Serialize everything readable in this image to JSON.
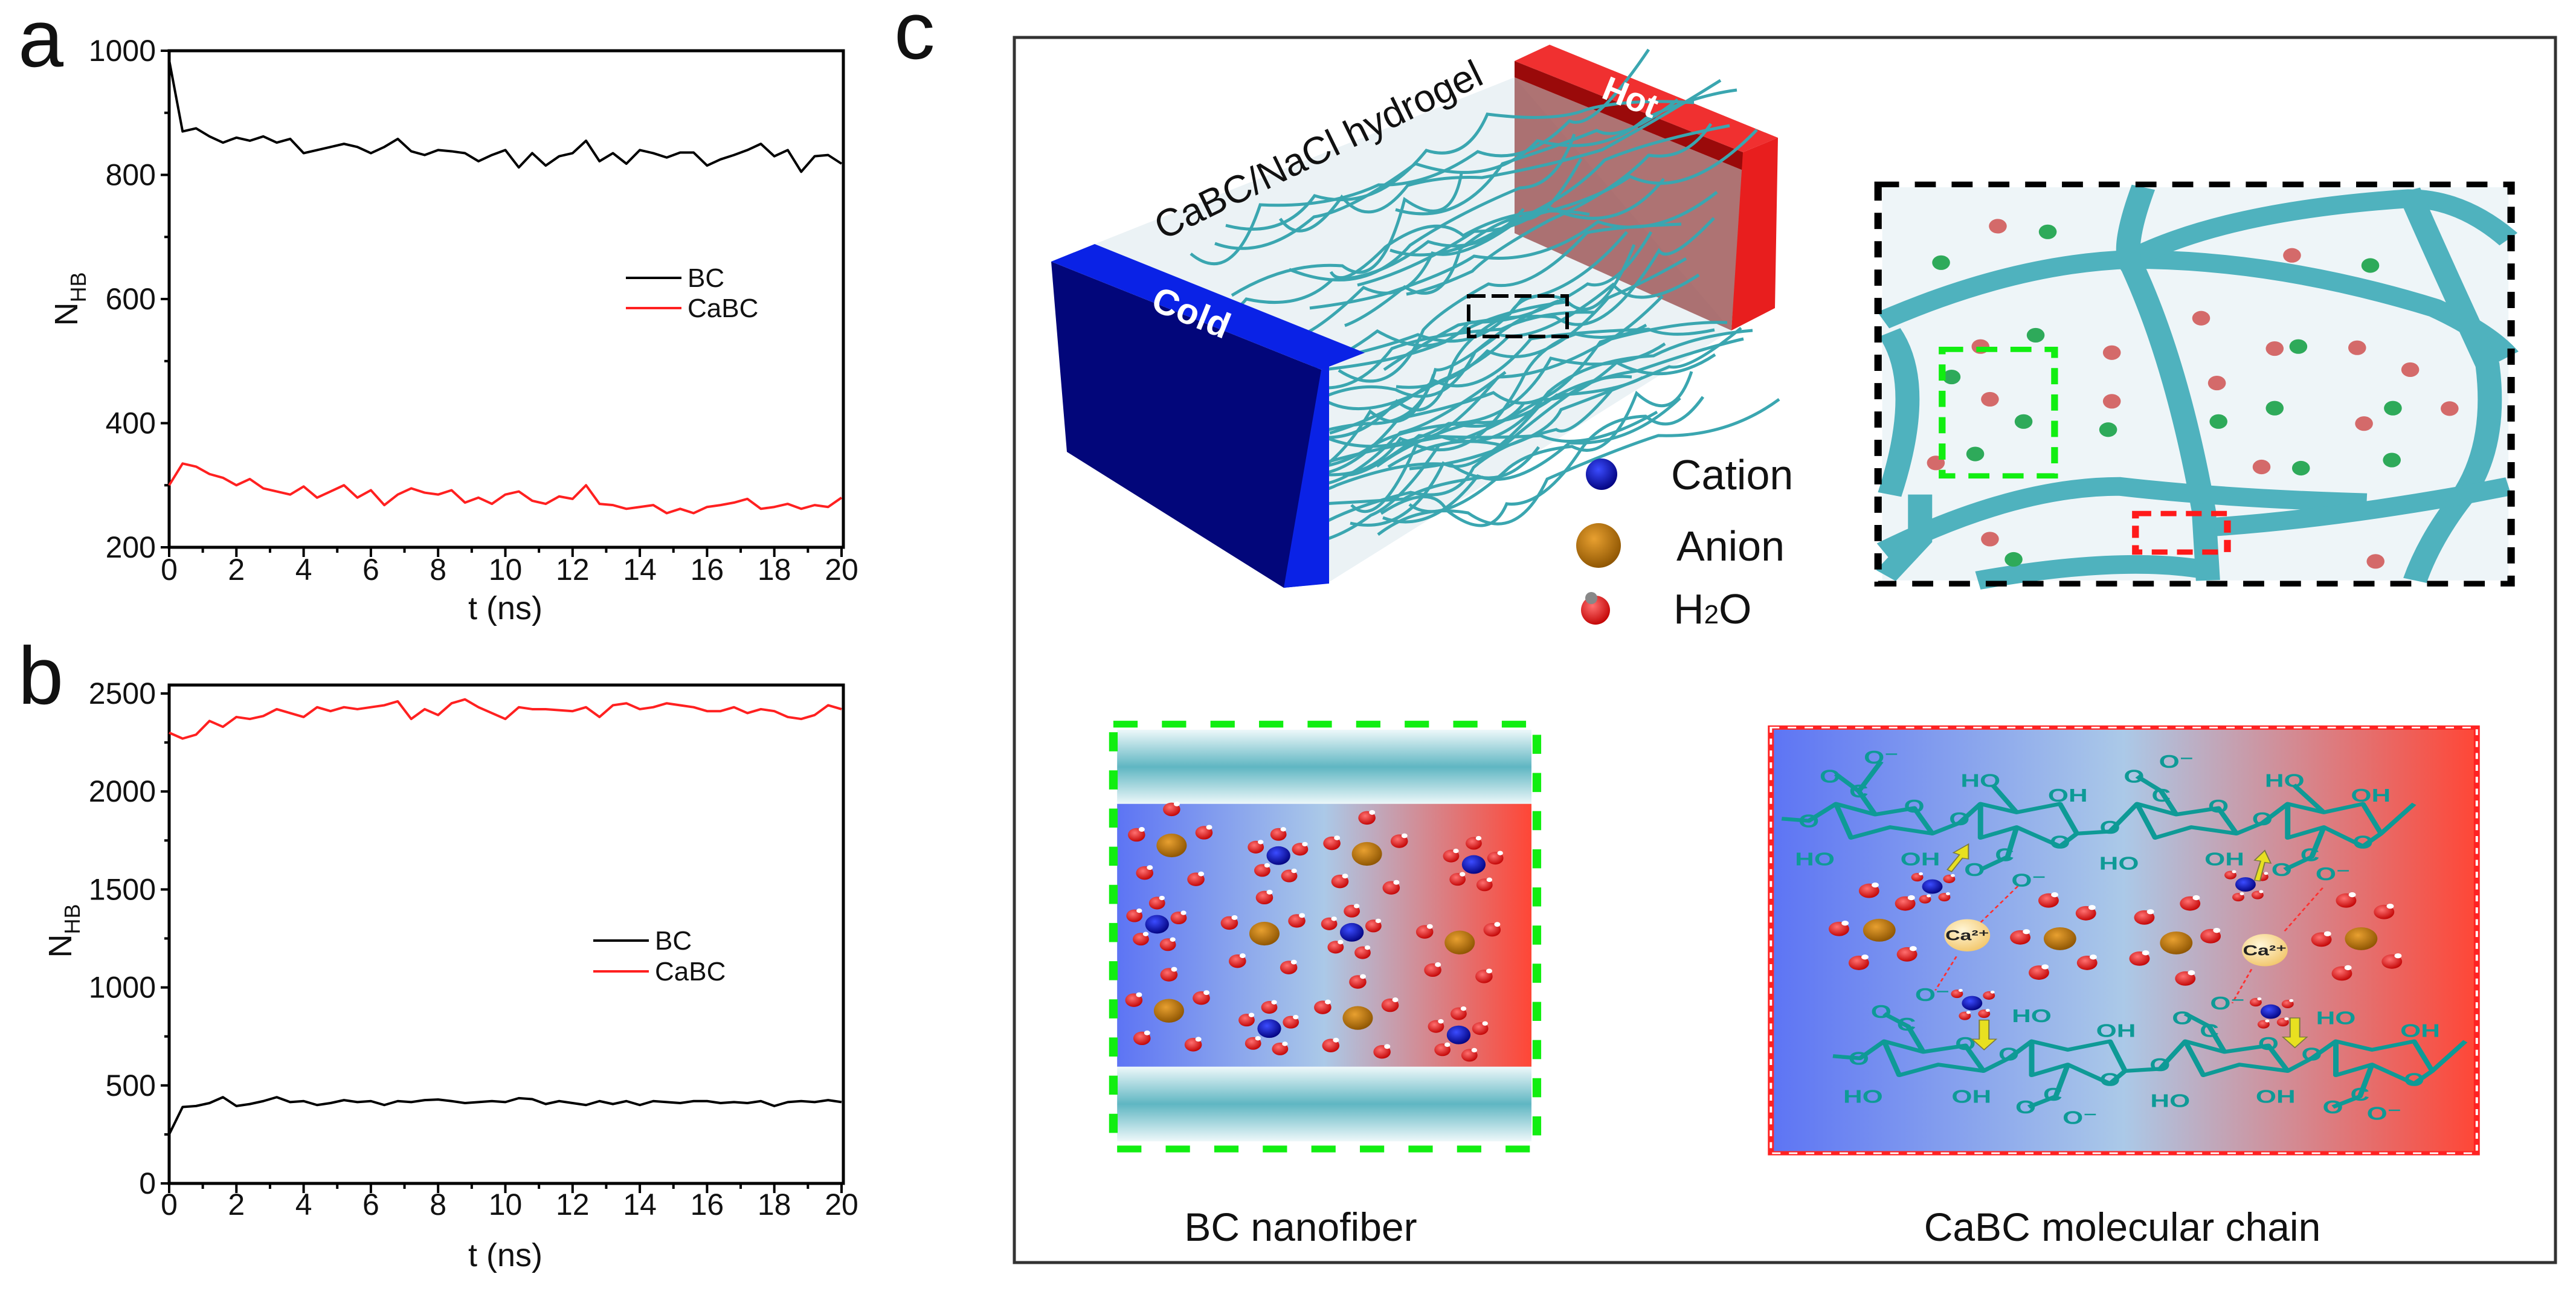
{
  "panels": {
    "a": "a",
    "b": "b",
    "c": "c"
  },
  "chart_data": [
    {
      "type": "line",
      "panel": "a",
      "title": "",
      "xlabel": "t (ns)",
      "ylabel_main": "N",
      "ylabel_sub": "HB",
      "xlim": [
        0,
        20
      ],
      "ylim": [
        200,
        1000
      ],
      "xticks": [
        0,
        2,
        4,
        6,
        8,
        10,
        12,
        14,
        16,
        18,
        20
      ],
      "yticks": [
        200,
        400,
        600,
        800,
        1000
      ],
      "legend": "center-right",
      "x": [
        0,
        0.4,
        0.8,
        1.2,
        1.6,
        2.0,
        2.4,
        2.8,
        3.2,
        3.6,
        4.0,
        4.4,
        4.8,
        5.2,
        5.6,
        6.0,
        6.4,
        6.8,
        7.2,
        7.6,
        8.0,
        8.4,
        8.8,
        9.2,
        9.6,
        10.0,
        10.4,
        10.8,
        11.2,
        11.6,
        12.0,
        12.4,
        12.8,
        13.2,
        13.6,
        14.0,
        14.4,
        14.8,
        15.2,
        15.6,
        16.0,
        16.4,
        16.8,
        17.2,
        17.6,
        18.0,
        18.4,
        18.8,
        19.2,
        19.6,
        20.0
      ],
      "series": [
        {
          "name": "BC",
          "color": "#000000",
          "values": [
            985,
            870,
            875,
            862,
            852,
            860,
            855,
            862,
            852,
            858,
            835,
            840,
            845,
            850,
            845,
            835,
            845,
            858,
            838,
            832,
            840,
            838,
            835,
            822,
            832,
            840,
            812,
            835,
            815,
            830,
            835,
            855,
            822,
            835,
            818,
            840,
            835,
            828,
            836,
            836,
            815,
            825,
            832,
            840,
            850,
            830,
            840,
            805,
            830,
            832,
            818
          ]
        },
        {
          "name": "CaBC",
          "color": "#ff2020",
          "values": [
            300,
            335,
            330,
            318,
            312,
            300,
            310,
            295,
            290,
            285,
            298,
            280,
            290,
            300,
            280,
            292,
            268,
            285,
            295,
            288,
            285,
            292,
            272,
            280,
            270,
            285,
            290,
            275,
            270,
            282,
            278,
            300,
            270,
            268,
            262,
            265,
            268,
            255,
            262,
            255,
            265,
            268,
            272,
            278,
            262,
            265,
            270,
            262,
            268,
            265,
            280
          ]
        }
      ]
    },
    {
      "type": "line",
      "panel": "b",
      "title": "",
      "xlabel": "t (ns)",
      "ylabel_main": "N",
      "ylabel_sub": "HB",
      "xlim": [
        0,
        20
      ],
      "ylim": [
        0,
        2500
      ],
      "xticks": [
        0,
        2,
        4,
        6,
        8,
        10,
        12,
        14,
        16,
        18,
        20
      ],
      "yticks": [
        0,
        500,
        1000,
        1500,
        2000,
        2500
      ],
      "legend": "center-right",
      "x": [
        0,
        0.4,
        0.8,
        1.2,
        1.6,
        2.0,
        2.4,
        2.8,
        3.2,
        3.6,
        4.0,
        4.4,
        4.8,
        5.2,
        5.6,
        6.0,
        6.4,
        6.8,
        7.2,
        7.6,
        8.0,
        8.4,
        8.8,
        9.2,
        9.6,
        10.0,
        10.4,
        10.8,
        11.2,
        11.6,
        12.0,
        12.4,
        12.8,
        13.2,
        13.6,
        14.0,
        14.4,
        14.8,
        15.2,
        15.6,
        16.0,
        16.4,
        16.8,
        17.2,
        17.6,
        18.0,
        18.4,
        18.8,
        19.2,
        19.6,
        20.0
      ],
      "series": [
        {
          "name": "BC",
          "color": "#000000",
          "values": [
            250,
            390,
            395,
            410,
            440,
            395,
            405,
            420,
            440,
            415,
            420,
            400,
            410,
            425,
            415,
            420,
            400,
            420,
            415,
            425,
            428,
            420,
            410,
            415,
            420,
            415,
            435,
            430,
            405,
            420,
            410,
            400,
            420,
            405,
            420,
            400,
            420,
            415,
            410,
            420,
            420,
            410,
            415,
            410,
            420,
            395,
            415,
            420,
            415,
            425,
            415
          ]
        },
        {
          "name": "CaBC",
          "color": "#ff2020",
          "values": [
            2300,
            2270,
            2290,
            2360,
            2330,
            2380,
            2370,
            2385,
            2420,
            2400,
            2380,
            2430,
            2410,
            2430,
            2420,
            2430,
            2440,
            2460,
            2370,
            2420,
            2390,
            2450,
            2470,
            2430,
            2400,
            2370,
            2430,
            2420,
            2420,
            2415,
            2410,
            2430,
            2380,
            2440,
            2450,
            2420,
            2430,
            2450,
            2440,
            2430,
            2410,
            2410,
            2430,
            2400,
            2420,
            2410,
            2380,
            2370,
            2390,
            2440,
            2420
          ]
        }
      ]
    }
  ],
  "diagram": {
    "hydrogel_label": "CaBC/NaCl hydrogel",
    "cold_label": "Cold",
    "hot_label": "Hot",
    "legend": {
      "cation": "Cation",
      "anion": "Anion",
      "water_h": "H",
      "water_2": "2",
      "water_o": "O"
    },
    "colors": {
      "cold": "#0a1cd6",
      "hot": "#ee2020",
      "fiber": "#3aa6b0",
      "green_box": "#11ee11",
      "red_box": "#ff1a1a"
    },
    "caption_left": "BC nanofiber",
    "caption_right": "CaBC molecular chain",
    "ca_label": "Ca²⁺",
    "chem_labels": {
      "ho": "HO",
      "oh": "OH",
      "o": "O",
      "c": "C",
      "o_minus": "O⁻"
    }
  }
}
